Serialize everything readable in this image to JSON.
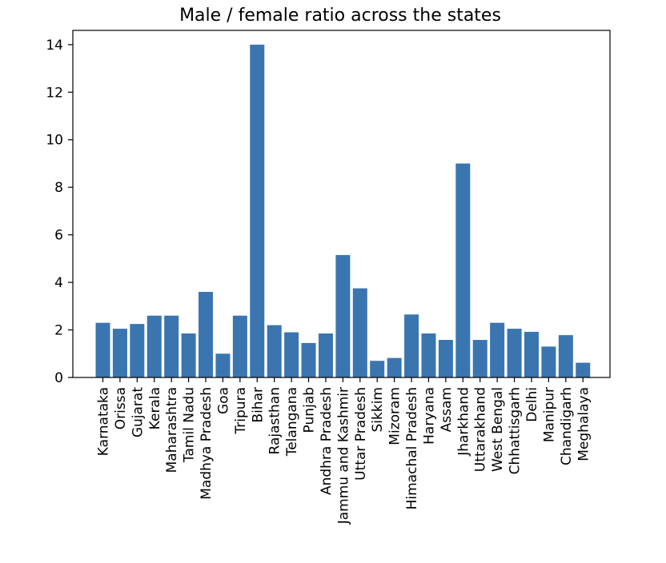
{
  "chart_data": {
    "type": "bar",
    "title": "Male / female ratio across the states",
    "xlabel": "",
    "ylabel": "",
    "ylim": [
      0,
      14.6
    ],
    "yticks": [
      0,
      2,
      4,
      6,
      8,
      10,
      12,
      14
    ],
    "grid": false,
    "color": "#3a75b0",
    "categories": [
      "Karnataka",
      "Orissa",
      "Gujarat",
      "Kerala",
      "Maharashtra",
      "Tamil Nadu",
      "Madhya Pradesh",
      "Goa",
      "Tripura",
      "Bihar",
      "Rajasthan",
      "Telangana",
      "Punjab",
      "Andhra Pradesh",
      "Jammu and Kashmir",
      "Uttar Pradesh",
      "Sikkim",
      "Mizoram",
      "Himachal Pradesh",
      "Haryana",
      "Assam",
      "Jharkhand",
      "Uttarakhand",
      "West Bengal",
      "Chhattisgarh",
      "Delhi",
      "Manipur",
      "Chandigarh",
      "Meghalaya"
    ],
    "values": [
      2.3,
      2.05,
      2.25,
      2.6,
      2.6,
      1.85,
      3.6,
      1.0,
      2.6,
      14.0,
      2.2,
      1.9,
      1.45,
      1.85,
      5.15,
      3.75,
      0.7,
      0.82,
      2.65,
      1.85,
      1.58,
      9.0,
      1.58,
      2.3,
      2.05,
      1.92,
      1.3,
      1.78,
      0.62
    ]
  }
}
